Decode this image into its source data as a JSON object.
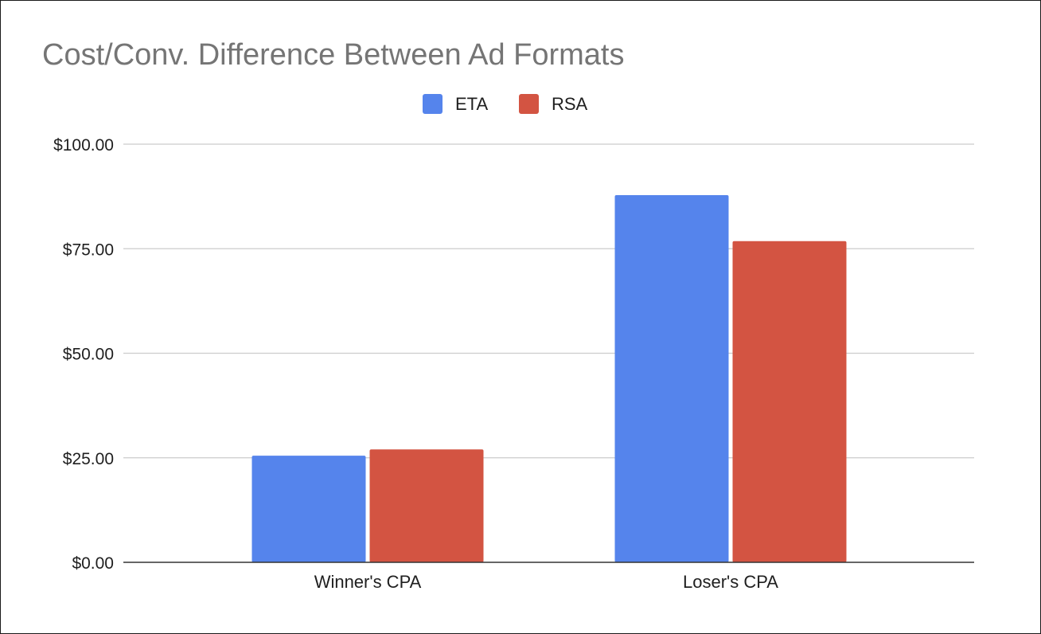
{
  "chart_data": {
    "type": "bar",
    "title": "Cost/Conv. Difference Between Ad Formats",
    "categories": [
      "Winner's CPA",
      "Loser's CPA"
    ],
    "series": [
      {
        "name": "ETA",
        "color": "#5584ec",
        "values": [
          25.5,
          87.8
        ]
      },
      {
        "name": "RSA",
        "color": "#d35442",
        "values": [
          27.0,
          76.8
        ]
      }
    ],
    "yticks": [
      "$0.00",
      "$25.00",
      "$50.00",
      "$75.00",
      "$100.00"
    ],
    "ylim": [
      0,
      100
    ],
    "grid": true,
    "legend_position": "top-center"
  }
}
